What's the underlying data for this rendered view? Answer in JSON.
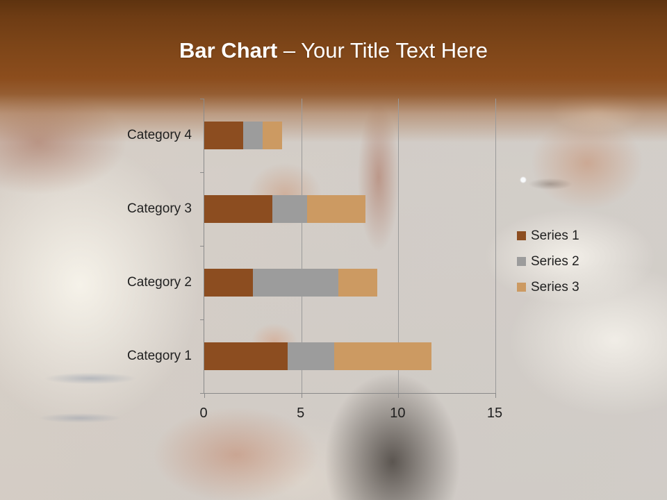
{
  "slide": {
    "title_bold": "Bar Chart",
    "title_rest": " – Your Title Text Here",
    "header_color_top": "#5e330f",
    "header_color_main": "#8c4d1d",
    "title_text_color": "#ffffff"
  },
  "chart_data": {
    "type": "bar",
    "orientation": "horizontal-stacked",
    "title": "",
    "xlabel": "",
    "ylabel": "",
    "categories": [
      "Category 1",
      "Category 2",
      "Category 3",
      "Category 4"
    ],
    "series": [
      {
        "name": "Series 1",
        "color": "#8C4D20",
        "values": [
          4.3,
          2.5,
          3.5,
          2
        ]
      },
      {
        "name": "Series 2",
        "color": "#9C9C9C",
        "values": [
          2.4,
          4.4,
          1.8,
          1
        ]
      },
      {
        "name": "Series 3",
        "color": "#CC9A62",
        "values": [
          5,
          2,
          3,
          1
        ]
      }
    ],
    "xlim": [
      0,
      15
    ],
    "x_ticks": [
      0,
      5,
      10,
      15
    ],
    "grid": true,
    "legend_position": "right",
    "category_display_order": "top-is-last",
    "axis_color": "#8a8a8a",
    "text_color": "#1f1f1f"
  }
}
